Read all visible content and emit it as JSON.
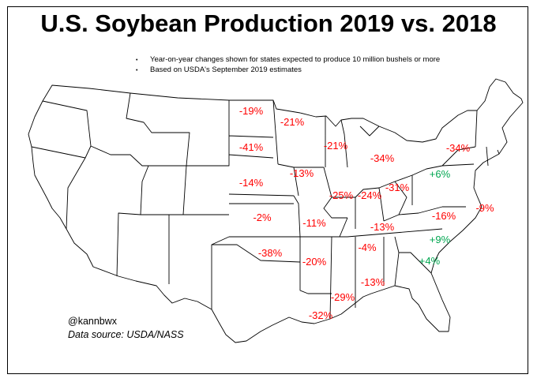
{
  "title": "U.S. Soybean Production 2019 vs. 2018",
  "notes": [
    "Year-on-year changes shown for states expected to produce 10 million bushels or more",
    "Based on USDA's September 2019 estimates"
  ],
  "credit": {
    "handle": "@kannbwx",
    "source": "Data source: USDA/NASS"
  },
  "colors": {
    "decline": "#ff0000",
    "increase": "#00a650",
    "state_line": "#000000",
    "fill": "#ffffff"
  },
  "states": [
    {
      "state": "North Dakota",
      "change": "-19%",
      "direction": "decline"
    },
    {
      "state": "Minnesota",
      "change": "-21%",
      "direction": "decline"
    },
    {
      "state": "South Dakota",
      "change": "-41%",
      "direction": "decline"
    },
    {
      "state": "Wisconsin",
      "change": "-21%",
      "direction": "decline"
    },
    {
      "state": "Michigan",
      "change": "-34%",
      "direction": "decline"
    },
    {
      "state": "New York",
      "change": "-34%",
      "direction": "decline"
    },
    {
      "state": "Pennsylvania",
      "change": "+6%",
      "direction": "increase"
    },
    {
      "state": "Iowa",
      "change": "-13%",
      "direction": "decline"
    },
    {
      "state": "Nebraska",
      "change": "-14%",
      "direction": "decline"
    },
    {
      "state": "Illinois",
      "change": "-25%",
      "direction": "decline"
    },
    {
      "state": "Indiana",
      "change": "-24%",
      "direction": "decline"
    },
    {
      "state": "Ohio",
      "change": "-31%",
      "direction": "decline"
    },
    {
      "state": "Kansas",
      "change": "-2%",
      "direction": "decline"
    },
    {
      "state": "Missouri",
      "change": "-11%",
      "direction": "decline"
    },
    {
      "state": "Kentucky",
      "change": "-13%",
      "direction": "decline"
    },
    {
      "state": "Virginia",
      "change": "-16%",
      "direction": "decline"
    },
    {
      "state": "Maryland/Delaware",
      "change": "-9%",
      "direction": "decline"
    },
    {
      "state": "Oklahoma",
      "change": "-38%",
      "direction": "decline"
    },
    {
      "state": "Arkansas",
      "change": "-20%",
      "direction": "decline"
    },
    {
      "state": "Tennessee",
      "change": "-4%",
      "direction": "decline"
    },
    {
      "state": "North Carolina",
      "change": "+9%",
      "direction": "increase"
    },
    {
      "state": "South Carolina",
      "change": "+4%",
      "direction": "increase"
    },
    {
      "state": "Alabama",
      "change": "-13%",
      "direction": "decline"
    },
    {
      "state": "Mississippi",
      "change": "-29%",
      "direction": "decline"
    },
    {
      "state": "Louisiana",
      "change": "-32%",
      "direction": "decline"
    }
  ]
}
